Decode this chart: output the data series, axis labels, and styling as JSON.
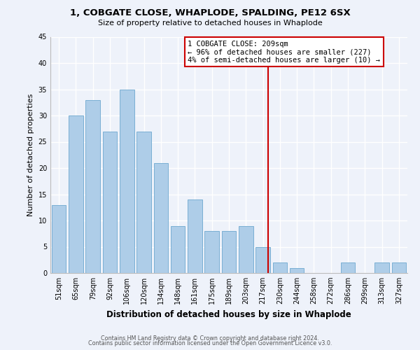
{
  "title1": "1, COBGATE CLOSE, WHAPLODE, SPALDING, PE12 6SX",
  "title2": "Size of property relative to detached houses in Whaplode",
  "xlabel": "Distribution of detached houses by size in Whaplode",
  "ylabel": "Number of detached properties",
  "bar_labels": [
    "51sqm",
    "65sqm",
    "79sqm",
    "92sqm",
    "106sqm",
    "120sqm",
    "134sqm",
    "148sqm",
    "161sqm",
    "175sqm",
    "189sqm",
    "203sqm",
    "217sqm",
    "230sqm",
    "244sqm",
    "258sqm",
    "272sqm",
    "286sqm",
    "299sqm",
    "313sqm",
    "327sqm"
  ],
  "bar_values": [
    13,
    30,
    33,
    27,
    35,
    27,
    21,
    9,
    14,
    8,
    8,
    9,
    5,
    2,
    1,
    0,
    0,
    2,
    0,
    2,
    2
  ],
  "bar_color": "#aecde8",
  "bar_edge_color": "#7aafd4",
  "vline_color": "#cc0000",
  "ylim": [
    0,
    45
  ],
  "yticks": [
    0,
    5,
    10,
    15,
    20,
    25,
    30,
    35,
    40,
    45
  ],
  "annotation_title": "1 COBGATE CLOSE: 209sqm",
  "annotation_line1": "← 96% of detached houses are smaller (227)",
  "annotation_line2": "4% of semi-detached houses are larger (10) →",
  "footer1": "Contains HM Land Registry data © Crown copyright and database right 2024.",
  "footer2": "Contains public sector information licensed under the Open Government Licence v3.0.",
  "background_color": "#eef2fa"
}
